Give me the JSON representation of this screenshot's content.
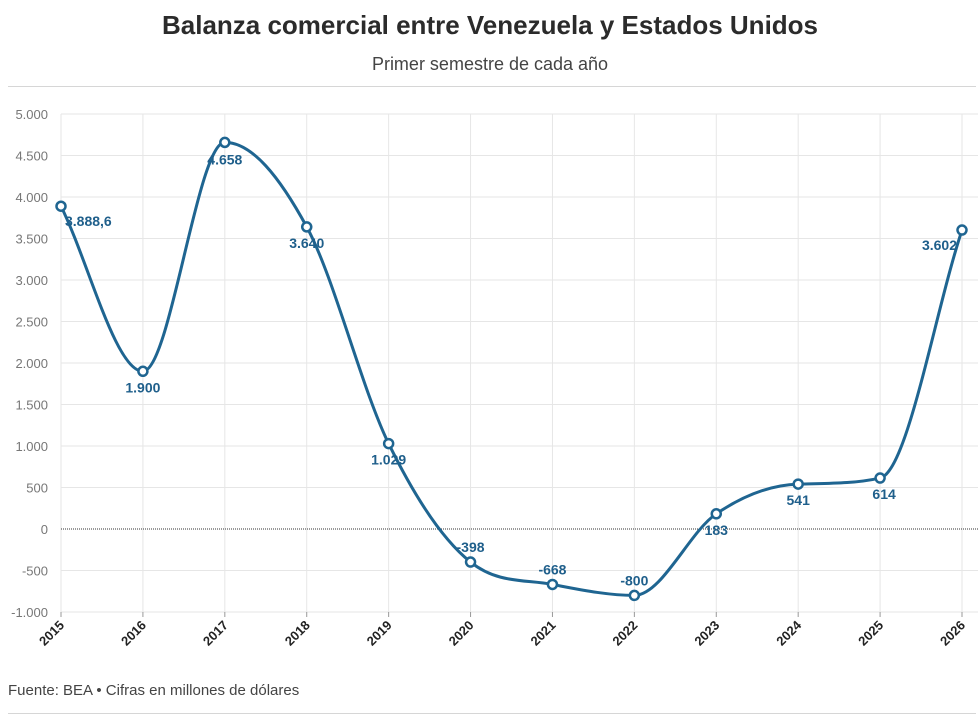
{
  "header": {
    "title": "Balanza comercial entre Venezuela y Estados Unidos",
    "subtitle": "Primer semestre de cada año"
  },
  "footer": {
    "source": "Fuente: BEA • Cifras en millones de dólares"
  },
  "colors": {
    "line": "#1f6591",
    "grid": "#e6e6e6",
    "zero_line": "#333333"
  },
  "chart_data": {
    "type": "line",
    "title": "Balanza comercial entre Venezuela y Estados Unidos",
    "subtitle": "Primer semestre de cada año",
    "categories": [
      "2015",
      "2016",
      "2017",
      "2018",
      "2019",
      "2020",
      "2021",
      "2022",
      "2023",
      "2024",
      "2025",
      "2026"
    ],
    "series": [
      {
        "values": [
          3888.6,
          1900,
          4658,
          3640,
          1029,
          -398,
          -668,
          -800,
          183,
          541,
          614,
          3602
        ],
        "labels": [
          "3.888,6",
          "1.900",
          "4.658",
          "3.640",
          "1.029",
          "-398",
          "-668",
          "-800",
          "183",
          "541",
          "614",
          "3.602"
        ]
      }
    ],
    "yticks": [
      5000,
      4500,
      4000,
      3500,
      3000,
      2500,
      2000,
      1500,
      1000,
      500,
      0,
      -500,
      -1000
    ],
    "ytick_labels": [
      "5.000",
      "4.500",
      "4.000",
      "3.500",
      "3.000",
      "2.500",
      "2.000",
      "1.500",
      "1.000",
      "500",
      "0",
      "-500",
      "-1.000"
    ],
    "ylim": [
      -1000,
      5000
    ],
    "grid": true,
    "smooth": true,
    "legend": "none"
  }
}
